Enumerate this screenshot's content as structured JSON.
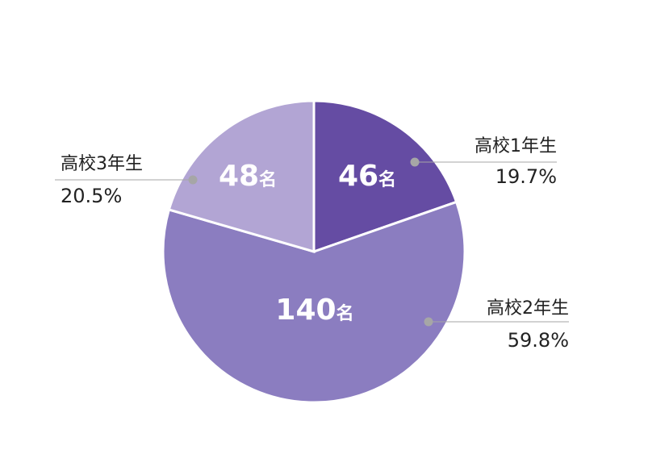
{
  "chart_data": {
    "type": "pie",
    "start_angle": "top, clockwise",
    "slices": [
      {
        "category": "高校1年生",
        "value": 46,
        "unit": "名",
        "percent_label": "19.7%",
        "color": "#654ca3"
      },
      {
        "category": "高校2年生",
        "value": 140,
        "unit": "名",
        "percent_label": "59.8%",
        "color": "#8b7dc0"
      },
      {
        "category": "高校3年生",
        "value": 48,
        "unit": "名",
        "percent_label": "20.5%",
        "color": "#b2a5d4"
      }
    ],
    "legend": "none",
    "leader_line_color": "#a6a6a6"
  }
}
